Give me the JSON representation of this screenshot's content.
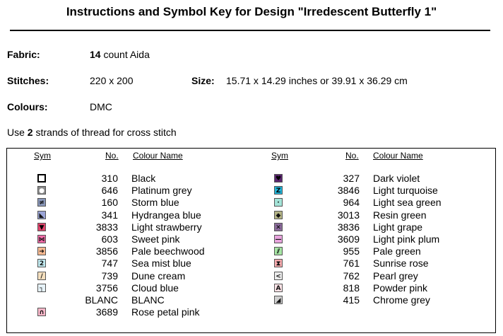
{
  "title": "Instructions and Symbol Key for Design \"Irredescent Butterfly 1\"",
  "fabric": {
    "label": "Fabric:",
    "count": "14",
    "suffix": " count Aida"
  },
  "stitches": {
    "label": "Stitches:",
    "value": "220 x 200"
  },
  "size": {
    "label": "Size:",
    "value": "15.71 x 14.29 inches or 39.91 x 36.29 cm"
  },
  "colours": {
    "label": "Colours:",
    "value": "DMC"
  },
  "strands": {
    "prefix": "Use ",
    "count": "2",
    "suffix": " strands of thread for cross stitch"
  },
  "headers": {
    "sym": "Sym",
    "no": "No.",
    "colour_name": "Colour Name"
  },
  "left_column": [
    {
      "no": "310",
      "name": "Black",
      "symbol": "white-square-icon",
      "bg": "#ffffff",
      "glyph": ""
    },
    {
      "no": "646",
      "name": "Platinum grey",
      "symbol": "circle-icon",
      "bg": "#8a8a8a",
      "glyph": "●"
    },
    {
      "no": "160",
      "name": "Storm blue",
      "symbol": "not-equal-icon",
      "bg": "#8896b8",
      "glyph": "≠"
    },
    {
      "no": "341",
      "name": "Hydrangea blue",
      "symbol": "triangle-icon",
      "bg": "#9aa4d6",
      "glyph": "◣"
    },
    {
      "no": "3833",
      "name": "Light strawberry",
      "symbol": "down-triangle-icon",
      "bg": "#e0446c",
      "glyph": "▼"
    },
    {
      "no": "603",
      "name": "Sweet pink",
      "symbol": "bowtie-icon",
      "bg": "#f06aa6",
      "glyph": "⋈"
    },
    {
      "no": "3856",
      "name": "Pale beechwood",
      "symbol": "arrow-right-icon",
      "bg": "#f4b890",
      "glyph": "➜"
    },
    {
      "no": "747",
      "name": "Sea mist blue",
      "symbol": "digit-two-icon",
      "bg": "#bfe8ee",
      "glyph": "2"
    },
    {
      "no": "739",
      "name": "Dune cream",
      "symbol": "slash-icon",
      "bg": "#f4dfbe",
      "glyph": "/"
    },
    {
      "no": "3756",
      "name": "Cloud blue",
      "symbol": "corner-icon",
      "bg": "#e6f2f8",
      "glyph": "┐"
    },
    {
      "no": "BLANC",
      "name": "BLANC",
      "symbol": "blank-icon",
      "bg": "#ffffff",
      "glyph": ""
    },
    {
      "no": "3689",
      "name": "Rose petal pink",
      "symbol": "arch-icon",
      "bg": "#f6b6c8",
      "glyph": "∩"
    }
  ],
  "right_column": [
    {
      "no": "327",
      "name": "Dark violet",
      "symbol": "heart-icon",
      "bg": "#5b2470",
      "glyph": "♥"
    },
    {
      "no": "3846",
      "name": "Light turquoise",
      "symbol": "letter-z-icon",
      "bg": "#20b4d8",
      "glyph": "Z"
    },
    {
      "no": "964",
      "name": "Light sea green",
      "symbol": "dot-icon",
      "bg": "#a4e4d8",
      "glyph": "·"
    },
    {
      "no": "3013",
      "name": "Resin green",
      "symbol": "diamond-icon",
      "bg": "#b4b486",
      "glyph": "◆"
    },
    {
      "no": "3836",
      "name": "Light grape",
      "symbol": "cross-icon",
      "bg": "#8a6a9a",
      "glyph": "✕"
    },
    {
      "no": "3609",
      "name": "Light pink plum",
      "symbol": "dash-icon",
      "bg": "#e8a4de",
      "glyph": "—"
    },
    {
      "no": "955",
      "name": "Pale green",
      "symbol": "hatch-icon",
      "bg": "#a6e6a4",
      "glyph": "⫽"
    },
    {
      "no": "761",
      "name": "Sunrise rose",
      "symbol": "hourglass-icon",
      "bg": "#f6aaae",
      "glyph": "⧗"
    },
    {
      "no": "762",
      "name": "Pearl grey",
      "symbol": "less-than-icon",
      "bg": "#ececec",
      "glyph": "<"
    },
    {
      "no": "818",
      "name": "Powder pink",
      "symbol": "letter-a-icon",
      "bg": "#ffe4e8",
      "glyph": "A"
    },
    {
      "no": "415",
      "name": "Chrome grey",
      "symbol": "corner-triangle-icon",
      "bg": "#cfcfcf",
      "glyph": "◢"
    }
  ]
}
